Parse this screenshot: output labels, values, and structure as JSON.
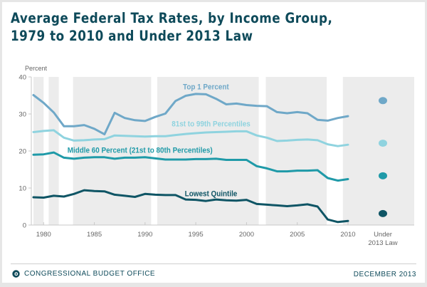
{
  "title": "Average Federal Tax Rates, by Income Group,\n1979 to 2010 and Under 2013 Law",
  "footer": {
    "organization": "CONGRESSIONAL BUDGET OFFICE",
    "date": "DECEMBER 2013",
    "logo_icon": "cbo-logo-icon"
  },
  "colors": {
    "title": "#0e4a5a",
    "top1": "#6fa8c8",
    "p81_99": "#8fd3df",
    "middle60": "#1f9aa8",
    "lowest": "#0f5565",
    "band": "#ececec",
    "axis": "#c8c8c8",
    "tick_text": "#666666"
  },
  "chart_data": {
    "type": "line",
    "title": "Average Federal Tax Rates, by Income Group, 1979 to 2010 and Under 2013 Law",
    "ylabel": "Percent",
    "xlabel": "",
    "ylim": [
      0,
      40
    ],
    "xlim": [
      1979,
      2010
    ],
    "y_ticks": [
      0,
      10,
      20,
      30,
      40
    ],
    "x_ticks": [
      1980,
      1985,
      1990,
      1995,
      2000,
      2005,
      2010
    ],
    "x_tick_labels": [
      "1980",
      "1985",
      "1990",
      "1995",
      "2000",
      "2005",
      "2010"
    ],
    "extra_category_label": "Under\n2013 Law",
    "grid": false,
    "shaded_periods": [
      [
        1979,
        1980
      ],
      [
        1980.5,
        1981.5
      ],
      [
        1982.9,
        1990.6
      ],
      [
        1991.2,
        2001.2
      ],
      [
        2001.9,
        2007.9
      ],
      [
        2009.5,
        2010
      ]
    ],
    "x": [
      1979,
      1980,
      1981,
      1982,
      1983,
      1984,
      1985,
      1986,
      1987,
      1988,
      1989,
      1990,
      1991,
      1992,
      1993,
      1994,
      1995,
      1996,
      1997,
      1998,
      1999,
      2000,
      2001,
      2002,
      2003,
      2004,
      2005,
      2006,
      2007,
      2008,
      2009,
      2010
    ],
    "series": [
      {
        "name": "Top 1 Percent",
        "key": "top1",
        "label_year": 1996,
        "label_value": 36.6,
        "values": [
          35.1,
          33.0,
          30.4,
          26.7,
          26.7,
          27.0,
          26.0,
          24.5,
          30.3,
          28.9,
          28.3,
          28.1,
          29.2,
          30.1,
          33.5,
          34.9,
          35.4,
          35.3,
          34.1,
          32.6,
          32.8,
          32.4,
          32.2,
          32.1,
          30.5,
          30.2,
          30.5,
          30.2,
          28.4,
          28.2,
          28.9,
          29.4
        ],
        "value_2013_law": 33.6
      },
      {
        "name": "81st to 99th Percentiles",
        "key": "p81_99",
        "label_year": 1996.5,
        "label_value": 26.6,
        "values": [
          25.1,
          25.4,
          25.6,
          23.6,
          22.8,
          22.9,
          23.1,
          23.2,
          24.2,
          24.1,
          24.0,
          23.9,
          24.0,
          24.0,
          24.3,
          24.6,
          24.8,
          25.0,
          25.1,
          25.2,
          25.3,
          25.3,
          24.2,
          23.6,
          22.7,
          22.8,
          23.0,
          23.1,
          22.9,
          21.8,
          21.3,
          21.7
        ],
        "value_2013_law": 22.1
      },
      {
        "name": "Middle 60 Percent (21st to 80th Percentiles)",
        "key": "middle60",
        "label_year": 1989.5,
        "label_value": 19.5,
        "values": [
          19.0,
          19.1,
          19.6,
          18.2,
          17.9,
          18.2,
          18.3,
          18.3,
          17.9,
          18.2,
          18.2,
          18.3,
          18.0,
          17.7,
          17.7,
          17.7,
          17.8,
          17.8,
          17.9,
          17.6,
          17.6,
          17.6,
          15.9,
          15.3,
          14.5,
          14.5,
          14.7,
          14.7,
          14.8,
          12.7,
          12.0,
          12.4
        ],
        "value_2013_law": 13.3
      },
      {
        "name": "Lowest Quintile",
        "key": "lowest",
        "label_year": 1996.5,
        "label_value": 7.8,
        "values": [
          7.5,
          7.4,
          7.9,
          7.7,
          8.4,
          9.4,
          9.2,
          9.1,
          8.2,
          7.9,
          7.6,
          8.4,
          8.2,
          8.1,
          8.1,
          6.9,
          6.8,
          6.5,
          6.9,
          6.7,
          6.6,
          6.8,
          5.7,
          5.5,
          5.3,
          5.1,
          5.3,
          5.6,
          5.0,
          1.5,
          0.8,
          1.1
        ],
        "value_2013_law": 3.1
      }
    ]
  }
}
